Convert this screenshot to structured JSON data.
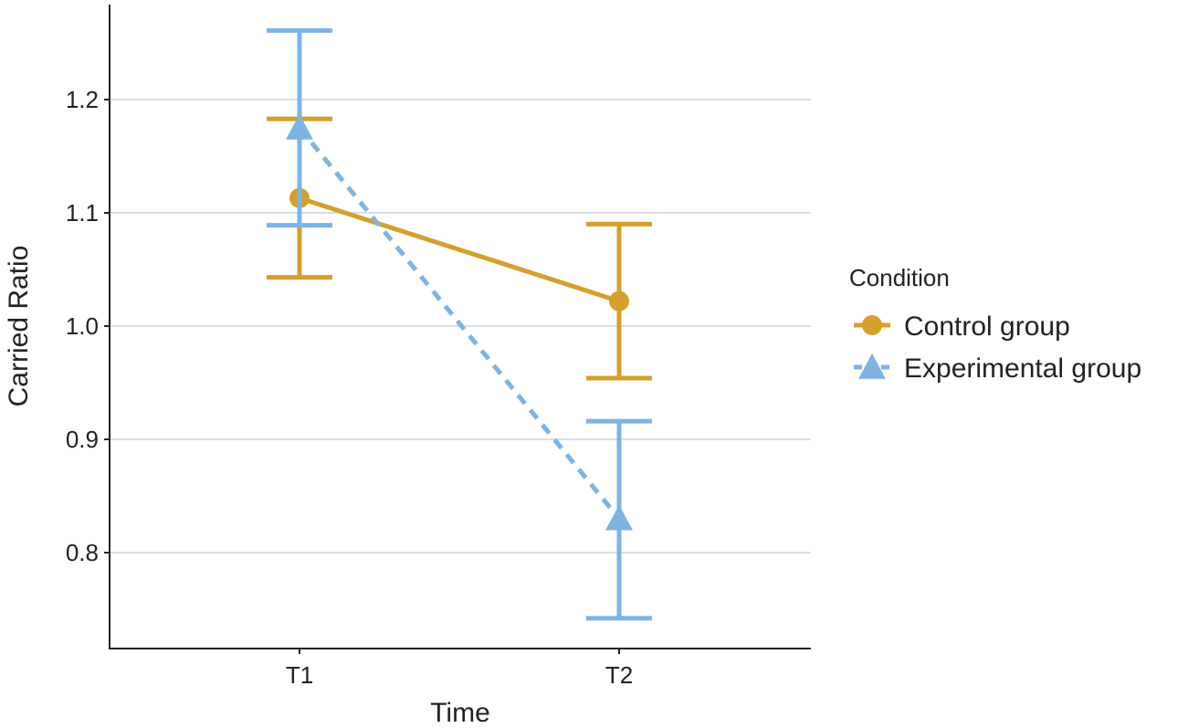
{
  "chart_data": {
    "type": "line",
    "title": "",
    "xlabel": "Time",
    "ylabel": "Carried Ratio",
    "categories": [
      "T1",
      "T2"
    ],
    "ylim": [
      0.72,
      1.28
    ],
    "yticks": [
      "0.8",
      "0.9",
      "1.0",
      "1.1",
      "1.2"
    ],
    "ytick_values": [
      0.8,
      0.9,
      1.0,
      1.1,
      1.2
    ],
    "grid": "horizontal",
    "legend": {
      "title": "Condition",
      "placement": "right"
    },
    "series": [
      {
        "name": "Control group",
        "marker": "circle",
        "line_style": "solid",
        "color": "#D4A02B",
        "values": [
          1.113,
          1.022
        ],
        "error_low": [
          1.043,
          0.954
        ],
        "error_high": [
          1.183,
          1.09
        ]
      },
      {
        "name": "Experimental group",
        "marker": "triangle",
        "line_style": "dashed",
        "color": "#7EB4E2",
        "values": [
          1.175,
          0.83
        ],
        "error_low": [
          1.089,
          0.742
        ],
        "error_high": [
          1.261,
          0.916
        ]
      }
    ]
  }
}
